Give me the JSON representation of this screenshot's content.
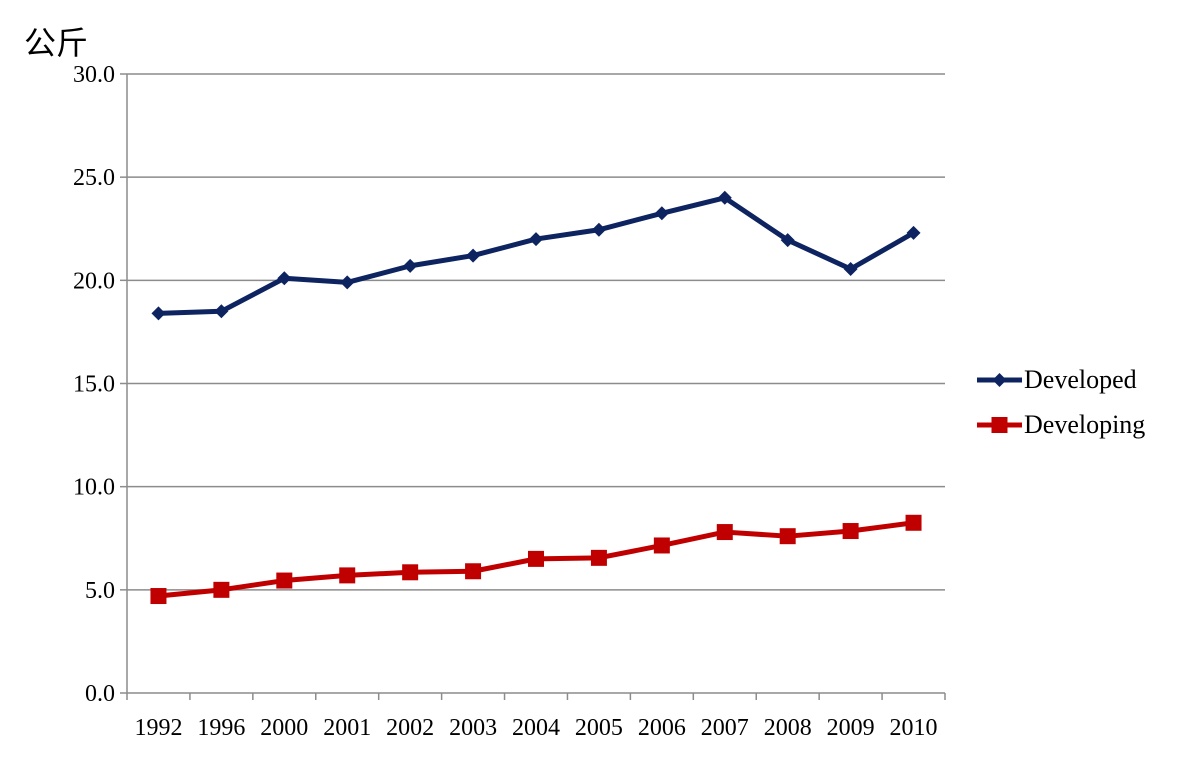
{
  "chart_data": {
    "type": "line",
    "ylabel": "公斤",
    "categories": [
      "1992",
      "1996",
      "2000",
      "2001",
      "2002",
      "2003",
      "2004",
      "2005",
      "2006",
      "2007",
      "2008",
      "2009",
      "2010"
    ],
    "ylim": [
      0,
      30
    ],
    "yticks": [
      "0.0",
      "5.0",
      "10.0",
      "15.0",
      "20.0",
      "25.0",
      "30.0"
    ],
    "grid": true,
    "legend_position": "right",
    "series": [
      {
        "name": "Developed",
        "color": "#0d2461",
        "marker": "diamond",
        "values": [
          18.4,
          18.5,
          20.1,
          19.9,
          20.7,
          21.2,
          22.0,
          22.45,
          23.25,
          24.0,
          21.95,
          20.55,
          22.3
        ]
      },
      {
        "name": "Developing",
        "color": "#c00000",
        "marker": "square",
        "values": [
          4.7,
          5.0,
          5.45,
          5.7,
          5.85,
          5.9,
          6.5,
          6.55,
          7.15,
          7.8,
          7.6,
          7.85,
          8.25
        ]
      }
    ]
  }
}
